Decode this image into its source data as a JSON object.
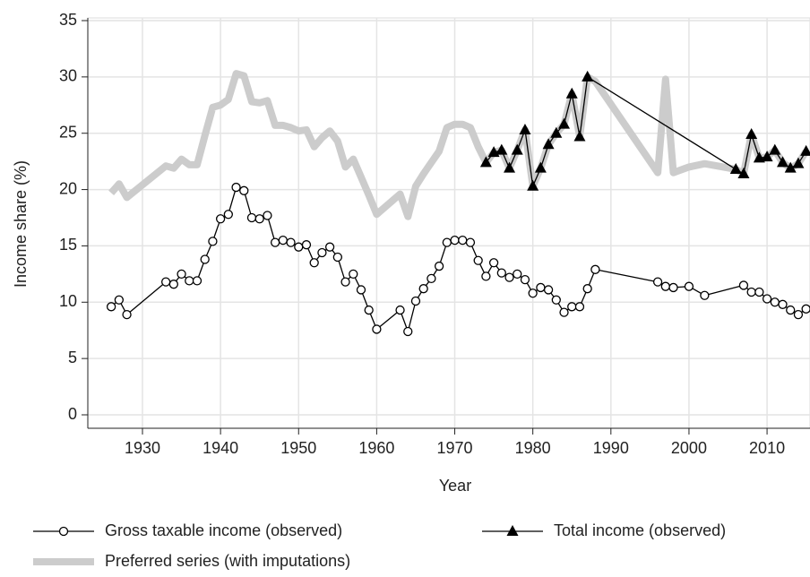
{
  "chart_data": {
    "type": "line",
    "x_label": "Year",
    "y_label": "Income share (%)",
    "xlim": [
      1923,
      2015.5
    ],
    "ylim": [
      0,
      35
    ],
    "xticks": [
      1930,
      1940,
      1950,
      1960,
      1970,
      1980,
      1990,
      2000,
      2010
    ],
    "yticks": [
      0,
      5,
      10,
      15,
      20,
      25,
      30,
      35
    ],
    "grid": true,
    "series": [
      {
        "name": "Gross taxable income (observed)",
        "color": "#000000",
        "marker": "circle",
        "line_width": 1.3,
        "x": [
          1926,
          1927,
          1928,
          1933,
          1934,
          1935,
          1936,
          1937,
          1938,
          1939,
          1940,
          1941,
          1942,
          1943,
          1944,
          1945,
          1946,
          1947,
          1948,
          1949,
          1950,
          1951,
          1952,
          1953,
          1954,
          1955,
          1956,
          1957,
          1958,
          1959,
          1960,
          1963,
          1964,
          1965,
          1966,
          1967,
          1968,
          1969,
          1970,
          1971,
          1972,
          1973,
          1974,
          1975,
          1976,
          1977,
          1978,
          1979,
          1980,
          1981,
          1982,
          1983,
          1984,
          1985,
          1986,
          1987,
          1988,
          1996,
          1997,
          1998,
          2000,
          2002,
          2007,
          2008,
          2009,
          2010,
          2011,
          2012,
          2013,
          2014,
          2015
        ],
        "values": [
          9.6,
          10.2,
          8.9,
          11.8,
          11.6,
          12.5,
          11.9,
          11.9,
          13.8,
          15.4,
          17.4,
          17.8,
          20.2,
          19.9,
          17.5,
          17.4,
          17.7,
          15.3,
          15.5,
          15.3,
          14.9,
          15.1,
          13.5,
          14.4,
          14.9,
          14.0,
          11.8,
          12.5,
          11.1,
          9.3,
          7.6,
          9.3,
          7.4,
          10.1,
          11.2,
          12.1,
          13.2,
          15.3,
          15.5,
          15.5,
          15.3,
          13.7,
          12.3,
          13.5,
          12.6,
          12.2,
          12.5,
          12.0,
          10.8,
          11.3,
          11.1,
          10.2,
          9.1,
          9.6,
          9.6,
          11.2,
          12.9,
          11.8,
          11.4,
          11.3,
          11.4,
          10.6,
          11.5,
          10.9,
          10.9,
          10.3,
          10.0,
          9.8,
          9.3,
          8.9,
          9.4
        ]
      },
      {
        "name": "Total income (observed)",
        "color": "#000000",
        "marker": "triangle",
        "line_width": 1.3,
        "x": [
          1974,
          1975,
          1976,
          1977,
          1978,
          1979,
          1980,
          1981,
          1982,
          1983,
          1984,
          1985,
          1986,
          1987,
          2006,
          2007,
          2008,
          2009,
          2010,
          2011,
          2012,
          2013,
          2014,
          2015
        ],
        "values": [
          22.4,
          23.3,
          23.5,
          21.9,
          23.5,
          25.3,
          20.3,
          21.9,
          24.0,
          25.0,
          25.8,
          28.5,
          24.7,
          30.0,
          21.8,
          21.4,
          24.9,
          22.8,
          22.9,
          23.5,
          22.4,
          21.9,
          22.3,
          23.4
        ]
      },
      {
        "name": "Preferred series (with imputations)",
        "color": "#cccccc",
        "marker": "none",
        "line_width": 8,
        "x": [
          1926,
          1927,
          1928,
          1933,
          1934,
          1935,
          1936,
          1937,
          1938,
          1939,
          1940,
          1941,
          1942,
          1943,
          1944,
          1945,
          1946,
          1947,
          1948,
          1949,
          1950,
          1951,
          1952,
          1953,
          1954,
          1955,
          1956,
          1957,
          1958,
          1959,
          1960,
          1963,
          1964,
          1965,
          1966,
          1967,
          1968,
          1969,
          1970,
          1971,
          1972,
          1973,
          1974,
          1975,
          1976,
          1977,
          1978,
          1979,
          1980,
          1981,
          1982,
          1983,
          1984,
          1985,
          1986,
          1987,
          1988,
          1996,
          1997,
          1998,
          2000,
          2002,
          2006,
          2007,
          2008,
          2009,
          2010,
          2011,
          2012,
          2013,
          2014,
          2015
        ],
        "values": [
          19.7,
          20.5,
          19.3,
          22.1,
          21.9,
          22.7,
          22.2,
          22.2,
          24.8,
          27.3,
          27.5,
          28.0,
          30.3,
          30.1,
          27.8,
          27.7,
          27.9,
          25.7,
          25.7,
          25.5,
          25.2,
          25.3,
          23.8,
          24.6,
          25.2,
          24.3,
          22.0,
          22.7,
          21.1,
          19.5,
          17.8,
          19.6,
          17.6,
          20.3,
          21.4,
          22.4,
          23.4,
          25.5,
          25.8,
          25.8,
          25.5,
          23.8,
          22.4,
          23.3,
          23.5,
          21.9,
          23.5,
          25.3,
          20.3,
          21.9,
          24.0,
          25.0,
          25.8,
          28.5,
          24.7,
          30.0,
          29.6,
          21.5,
          29.8,
          21.5,
          22.0,
          22.3,
          21.8,
          21.4,
          24.9,
          22.8,
          22.9,
          23.5,
          22.4,
          21.9,
          22.3,
          23.4
        ]
      }
    ]
  }
}
